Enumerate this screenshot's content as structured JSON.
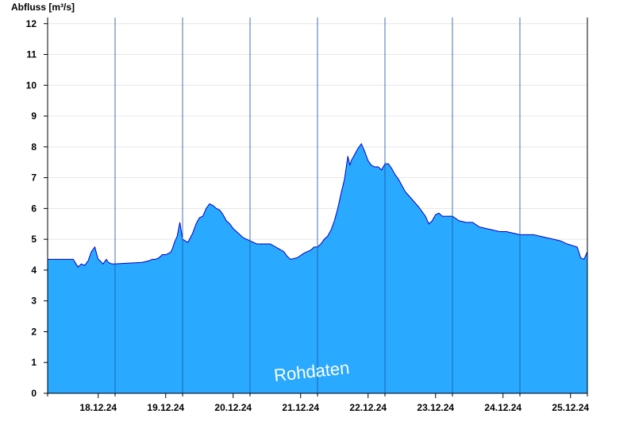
{
  "chart_data": {
    "type": "area",
    "title": "",
    "ylabel": "Abfluss [m³/s]",
    "xlabel": "",
    "ylim": [
      0,
      12.2
    ],
    "yticks": [
      0,
      1,
      2,
      3,
      4,
      5,
      6,
      7,
      8,
      9,
      10,
      11,
      12
    ],
    "x_unit": "days from 17.12.24 00:00",
    "xlim": [
      0,
      8
    ],
    "day_ticks": [
      "18.12.24",
      "19.12.24",
      "20.12.24",
      "21.12.24",
      "22.12.24",
      "23.12.24",
      "24.12.24",
      "25.12.24"
    ],
    "grid": true,
    "fill_color": "#29a9ff",
    "line_color": "#0000cc",
    "annotation": "Rohdaten",
    "series": [
      {
        "name": "",
        "x": [
          0,
          0.38,
          0.45,
          0.5,
          0.55,
          0.6,
          0.65,
          0.7,
          0.73,
          0.75,
          0.78,
          0.82,
          0.87,
          0.9,
          0.95,
          1.0,
          1.4,
          1.5,
          1.55,
          1.6,
          1.65,
          1.7,
          1.75,
          1.8,
          1.83,
          1.85,
          1.88,
          1.92,
          1.96,
          2.0,
          2.08,
          2.15,
          2.2,
          2.25,
          2.3,
          2.35,
          2.4,
          2.45,
          2.5,
          2.55,
          2.6,
          2.65,
          2.7,
          2.75,
          2.8,
          2.85,
          2.9,
          3.0,
          3.1,
          3.3,
          3.5,
          3.55,
          3.6,
          3.7,
          3.8,
          3.9,
          3.95,
          4.0,
          4.05,
          4.1,
          4.15,
          4.2,
          4.25,
          4.3,
          4.35,
          4.4,
          4.45,
          4.48,
          4.5,
          4.55,
          4.6,
          4.65,
          4.7,
          4.75,
          4.8,
          4.85,
          4.9,
          4.95,
          5.0,
          5.05,
          5.1,
          5.15,
          5.2,
          5.3,
          5.4,
          5.5,
          5.6,
          5.65,
          5.7,
          5.75,
          5.8,
          5.85,
          5.9,
          5.95,
          6.0,
          6.1,
          6.2,
          6.3,
          6.4,
          6.5,
          6.6,
          6.7,
          6.8,
          6.9,
          7.0,
          7.2,
          7.4,
          7.5,
          7.6,
          7.7,
          7.85,
          7.9,
          7.95,
          8.0
        ],
        "y": [
          4.35,
          4.35,
          4.1,
          4.2,
          4.15,
          4.3,
          4.6,
          4.75,
          4.5,
          4.35,
          4.3,
          4.2,
          4.35,
          4.25,
          4.2,
          4.2,
          4.25,
          4.3,
          4.35,
          4.35,
          4.4,
          4.5,
          4.5,
          4.55,
          4.6,
          4.7,
          4.9,
          5.1,
          5.55,
          5.0,
          4.9,
          5.2,
          5.5,
          5.7,
          5.75,
          6.0,
          6.15,
          6.1,
          6.0,
          5.95,
          5.8,
          5.6,
          5.5,
          5.35,
          5.25,
          5.15,
          5.05,
          4.95,
          4.85,
          4.85,
          4.6,
          4.45,
          4.35,
          4.4,
          4.55,
          4.65,
          4.75,
          4.75,
          4.85,
          5.0,
          5.1,
          5.3,
          5.6,
          6.0,
          6.5,
          6.95,
          7.7,
          7.4,
          7.55,
          7.75,
          7.95,
          8.1,
          7.85,
          7.55,
          7.4,
          7.35,
          7.35,
          7.25,
          7.45,
          7.45,
          7.3,
          7.1,
          6.95,
          6.55,
          6.3,
          6.05,
          5.75,
          5.5,
          5.6,
          5.8,
          5.85,
          5.75,
          5.75,
          5.75,
          5.75,
          5.6,
          5.55,
          5.55,
          5.4,
          5.35,
          5.3,
          5.25,
          5.25,
          5.2,
          5.15,
          5.15,
          5.05,
          5.0,
          4.95,
          4.85,
          4.75,
          4.4,
          4.35,
          4.6
        ]
      }
    ]
  }
}
